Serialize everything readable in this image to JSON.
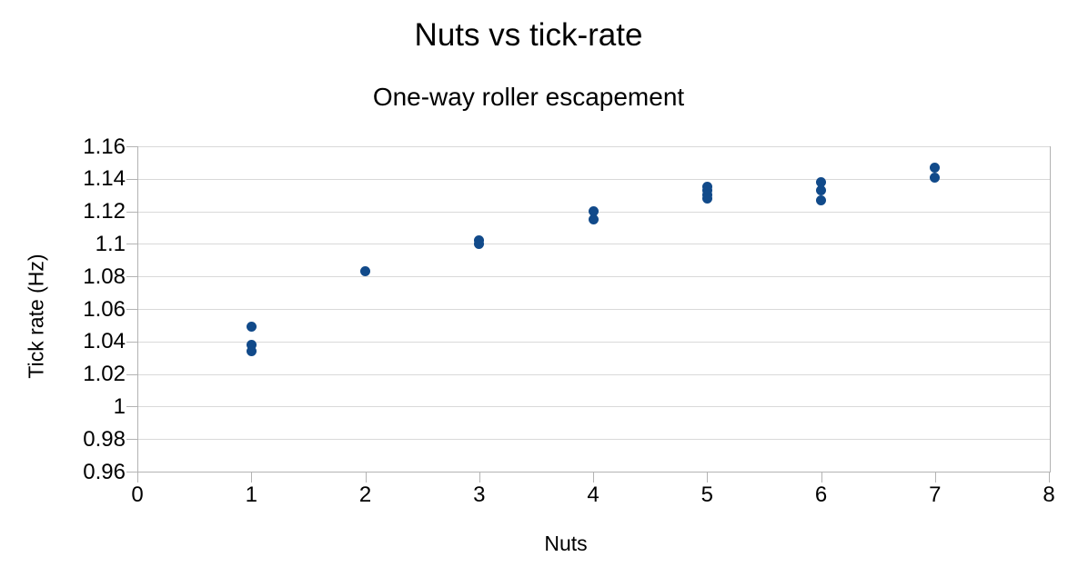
{
  "chart_data": {
    "type": "scatter",
    "title": "Nuts vs tick-rate",
    "subtitle": "One-way roller escapement",
    "xlabel": "Nuts",
    "ylabel": "Tick rate (Hz)",
    "xlim": [
      0,
      8
    ],
    "ylim": [
      0.96,
      1.16
    ],
    "xticks": [
      "0",
      "1",
      "2",
      "3",
      "4",
      "5",
      "6",
      "7",
      "8"
    ],
    "yticks": [
      "1.16",
      "1.14",
      "1.12",
      "1.1",
      "1.08",
      "1.06",
      "1.04",
      "1.02",
      "1",
      "0.98",
      "0.96"
    ],
    "grid": "horizontal-only",
    "legend": "none",
    "colors": {
      "point": "#114a8a",
      "gridline": "#d9d9d9",
      "axis": "#b3b3b3",
      "text": "#000000",
      "background": "#ffffff"
    },
    "series": [
      {
        "name": "Tick rate",
        "points": [
          [
            1,
            1.049
          ],
          [
            1,
            1.038
          ],
          [
            1,
            1.034
          ],
          [
            2,
            1.083
          ],
          [
            3,
            1.102
          ],
          [
            3,
            1.1
          ],
          [
            4,
            1.12
          ],
          [
            4,
            1.115
          ],
          [
            5,
            1.135
          ],
          [
            5,
            1.133
          ],
          [
            5,
            1.13
          ],
          [
            5,
            1.128
          ],
          [
            6,
            1.138
          ],
          [
            6,
            1.133
          ],
          [
            6,
            1.127
          ],
          [
            7,
            1.147
          ],
          [
            7,
            1.141
          ]
        ]
      }
    ]
  }
}
